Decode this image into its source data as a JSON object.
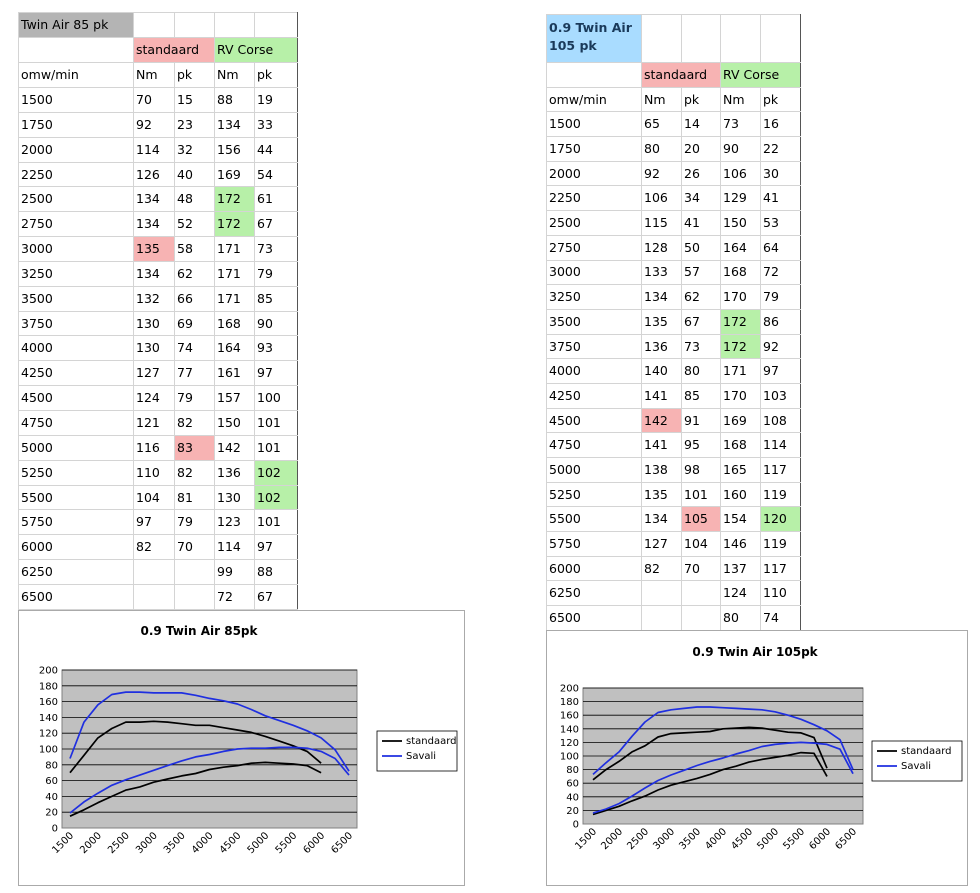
{
  "colors": {
    "pink": "#f7b3b3",
    "green": "#b7f0a8",
    "title_grey": "#b4b4b4",
    "title_blue": "#a9dcff",
    "standaard_line": "#000000",
    "savali_line": "#1f2fe0",
    "plot_bg": "#c0c0c0"
  },
  "tables": [
    {
      "title": "Twin Air 85 pk",
      "group_std": "standaard",
      "group_rv": "RV Corse",
      "headers": [
        "omw/min",
        "Nm",
        "pk",
        "Nm",
        "pk"
      ],
      "rows": [
        [
          "1500",
          "70",
          "15",
          "88",
          "19"
        ],
        [
          "1750",
          "92",
          "23",
          "134",
          "33"
        ],
        [
          "2000",
          "114",
          "32",
          "156",
          "44"
        ],
        [
          "2250",
          "126",
          "40",
          "169",
          "54"
        ],
        [
          "2500",
          "134",
          "48",
          "172",
          "61"
        ],
        [
          "2750",
          "134",
          "52",
          "172",
          "67"
        ],
        [
          "3000",
          "135",
          "58",
          "171",
          "73"
        ],
        [
          "3250",
          "134",
          "62",
          "171",
          "79"
        ],
        [
          "3500",
          "132",
          "66",
          "171",
          "85"
        ],
        [
          "3750",
          "130",
          "69",
          "168",
          "90"
        ],
        [
          "4000",
          "130",
          "74",
          "164",
          "93"
        ],
        [
          "4250",
          "127",
          "77",
          "161",
          "97"
        ],
        [
          "4500",
          "124",
          "79",
          "157",
          "100"
        ],
        [
          "4750",
          "121",
          "82",
          "150",
          "101"
        ],
        [
          "5000",
          "116",
          "83",
          "142",
          "101"
        ],
        [
          "5250",
          "110",
          "82",
          "136",
          "102"
        ],
        [
          "5500",
          "104",
          "81",
          "130",
          "102"
        ],
        [
          "5750",
          "97",
          "79",
          "123",
          "101"
        ],
        [
          "6000",
          "82",
          "70",
          "114",
          "97"
        ],
        [
          "6250",
          "",
          "",
          "99",
          "88"
        ],
        [
          "6500",
          "",
          "",
          "72",
          "67"
        ]
      ],
      "highlights": [
        [
          6,
          1,
          "pink"
        ],
        [
          14,
          2,
          "pink"
        ],
        [
          4,
          3,
          "green"
        ],
        [
          5,
          3,
          "green"
        ],
        [
          15,
          4,
          "green"
        ],
        [
          16,
          4,
          "green"
        ]
      ]
    },
    {
      "title_line1": "0.9 Twin Air",
      "title_line2": "105 pk",
      "group_std": "standaard",
      "group_rv": "RV Corse",
      "headers": [
        "omw/min",
        "Nm",
        "pk",
        "Nm",
        "pk"
      ],
      "rows": [
        [
          "1500",
          "65",
          "14",
          "73",
          "16"
        ],
        [
          "1750",
          "80",
          "20",
          "90",
          "22"
        ],
        [
          "2000",
          "92",
          "26",
          "106",
          "30"
        ],
        [
          "2250",
          "106",
          "34",
          "129",
          "41"
        ],
        [
          "2500",
          "115",
          "41",
          "150",
          "53"
        ],
        [
          "2750",
          "128",
          "50",
          "164",
          "64"
        ],
        [
          "3000",
          "133",
          "57",
          "168",
          "72"
        ],
        [
          "3250",
          "134",
          "62",
          "170",
          "79"
        ],
        [
          "3500",
          "135",
          "67",
          "172",
          "86"
        ],
        [
          "3750",
          "136",
          "73",
          "172",
          "92"
        ],
        [
          "4000",
          "140",
          "80",
          "171",
          "97"
        ],
        [
          "4250",
          "141",
          "85",
          "170",
          "103"
        ],
        [
          "4500",
          "142",
          "91",
          "169",
          "108"
        ],
        [
          "4750",
          "141",
          "95",
          "168",
          "114"
        ],
        [
          "5000",
          "138",
          "98",
          "165",
          "117"
        ],
        [
          "5250",
          "135",
          "101",
          "160",
          "119"
        ],
        [
          "5500",
          "134",
          "105",
          "154",
          "120"
        ],
        [
          "5750",
          "127",
          "104",
          "146",
          "119"
        ],
        [
          "6000",
          "82",
          "70",
          "137",
          "117"
        ],
        [
          "6250",
          "",
          "",
          "124",
          "110"
        ],
        [
          "6500",
          "",
          "",
          "80",
          "74"
        ]
      ],
      "highlights": [
        [
          12,
          1,
          "pink"
        ],
        [
          16,
          2,
          "pink"
        ],
        [
          8,
          3,
          "green"
        ],
        [
          9,
          3,
          "green"
        ],
        [
          16,
          4,
          "green"
        ]
      ]
    }
  ],
  "chart_data": [
    {
      "type": "line",
      "title": "0.9 Twin Air 85pk",
      "ylim": [
        0,
        200
      ],
      "yticks": [
        "0",
        "20",
        "40",
        "60",
        "80",
        "100",
        "120",
        "140",
        "160",
        "180",
        "200"
      ],
      "xticks": [
        "1500",
        "2000",
        "2500",
        "3000",
        "3500",
        "4000",
        "4500",
        "5000",
        "5500",
        "6000",
        "6500"
      ],
      "legend_position": "right",
      "legend": [
        "standaard",
        "Savali"
      ],
      "grid": true,
      "series": [
        {
          "name": "standaard",
          "color": "#000000",
          "x": [
            1500,
            1750,
            2000,
            2250,
            2500,
            2750,
            3000,
            3250,
            3500,
            3750,
            4000,
            4250,
            4500,
            4750,
            5000,
            5250,
            5500,
            5750,
            6000
          ],
          "values": [
            70,
            92,
            114,
            126,
            134,
            134,
            135,
            134,
            132,
            130,
            130,
            127,
            124,
            121,
            116,
            110,
            104,
            97,
            82
          ]
        },
        {
          "name": "standaard",
          "color": "#000000",
          "x": [
            1500,
            1750,
            2000,
            2250,
            2500,
            2750,
            3000,
            3250,
            3500,
            3750,
            4000,
            4250,
            4500,
            4750,
            5000,
            5250,
            5500,
            5750,
            6000
          ],
          "values": [
            15,
            23,
            32,
            40,
            48,
            52,
            58,
            62,
            66,
            69,
            74,
            77,
            79,
            82,
            83,
            82,
            81,
            79,
            70
          ]
        },
        {
          "name": "Savali",
          "color": "#1f2fe0",
          "x": [
            1500,
            1750,
            2000,
            2250,
            2500,
            2750,
            3000,
            3250,
            3500,
            3750,
            4000,
            4250,
            4500,
            4750,
            5000,
            5250,
            5500,
            5750,
            6000,
            6250,
            6500
          ],
          "values": [
            88,
            134,
            156,
            169,
            172,
            172,
            171,
            171,
            171,
            168,
            164,
            161,
            157,
            150,
            142,
            136,
            130,
            123,
            114,
            99,
            72
          ]
        },
        {
          "name": "Savali",
          "color": "#1f2fe0",
          "x": [
            1500,
            1750,
            2000,
            2250,
            2500,
            2750,
            3000,
            3250,
            3500,
            3750,
            4000,
            4250,
            4500,
            4750,
            5000,
            5250,
            5500,
            5750,
            6000,
            6250,
            6500
          ],
          "values": [
            19,
            33,
            44,
            54,
            61,
            67,
            73,
            79,
            85,
            90,
            93,
            97,
            100,
            101,
            101,
            102,
            102,
            101,
            97,
            88,
            67
          ]
        }
      ]
    },
    {
      "type": "line",
      "title": "0.9 Twin Air 105pk",
      "ylim": [
        0,
        200
      ],
      "yticks": [
        "0",
        "20",
        "40",
        "60",
        "80",
        "100",
        "120",
        "140",
        "160",
        "180",
        "200"
      ],
      "xticks": [
        "1500",
        "2000",
        "2500",
        "3000",
        "3500",
        "4000",
        "4500",
        "5000",
        "5500",
        "6000",
        "6500"
      ],
      "legend_position": "right",
      "legend": [
        "standaard",
        "Savali"
      ],
      "grid": true,
      "series": [
        {
          "name": "standaard",
          "color": "#000000",
          "x": [
            1500,
            1750,
            2000,
            2250,
            2500,
            2750,
            3000,
            3250,
            3500,
            3750,
            4000,
            4250,
            4500,
            4750,
            5000,
            5250,
            5500,
            5750,
            6000
          ],
          "values": [
            65,
            80,
            92,
            106,
            115,
            128,
            133,
            134,
            135,
            136,
            140,
            141,
            142,
            141,
            138,
            135,
            134,
            127,
            82
          ]
        },
        {
          "name": "standaard",
          "color": "#000000",
          "x": [
            1500,
            1750,
            2000,
            2250,
            2500,
            2750,
            3000,
            3250,
            3500,
            3750,
            4000,
            4250,
            4500,
            4750,
            5000,
            5250,
            5500,
            5750,
            6000
          ],
          "values": [
            14,
            20,
            26,
            34,
            41,
            50,
            57,
            62,
            67,
            73,
            80,
            85,
            91,
            95,
            98,
            101,
            105,
            104,
            70
          ]
        },
        {
          "name": "Savali",
          "color": "#1f2fe0",
          "x": [
            1500,
            1750,
            2000,
            2250,
            2500,
            2750,
            3000,
            3250,
            3500,
            3750,
            4000,
            4250,
            4500,
            4750,
            5000,
            5250,
            5500,
            5750,
            6000,
            6250,
            6500
          ],
          "values": [
            73,
            90,
            106,
            129,
            150,
            164,
            168,
            170,
            172,
            172,
            171,
            170,
            169,
            168,
            165,
            160,
            154,
            146,
            137,
            124,
            80
          ]
        },
        {
          "name": "Savali",
          "color": "#1f2fe0",
          "x": [
            1500,
            1750,
            2000,
            2250,
            2500,
            2750,
            3000,
            3250,
            3500,
            3750,
            4000,
            4250,
            4500,
            4750,
            5000,
            5250,
            5500,
            5750,
            6000,
            6250,
            6500
          ],
          "values": [
            16,
            22,
            30,
            41,
            53,
            64,
            72,
            79,
            86,
            92,
            97,
            103,
            108,
            114,
            117,
            119,
            120,
            119,
            117,
            110,
            74
          ]
        }
      ]
    }
  ]
}
